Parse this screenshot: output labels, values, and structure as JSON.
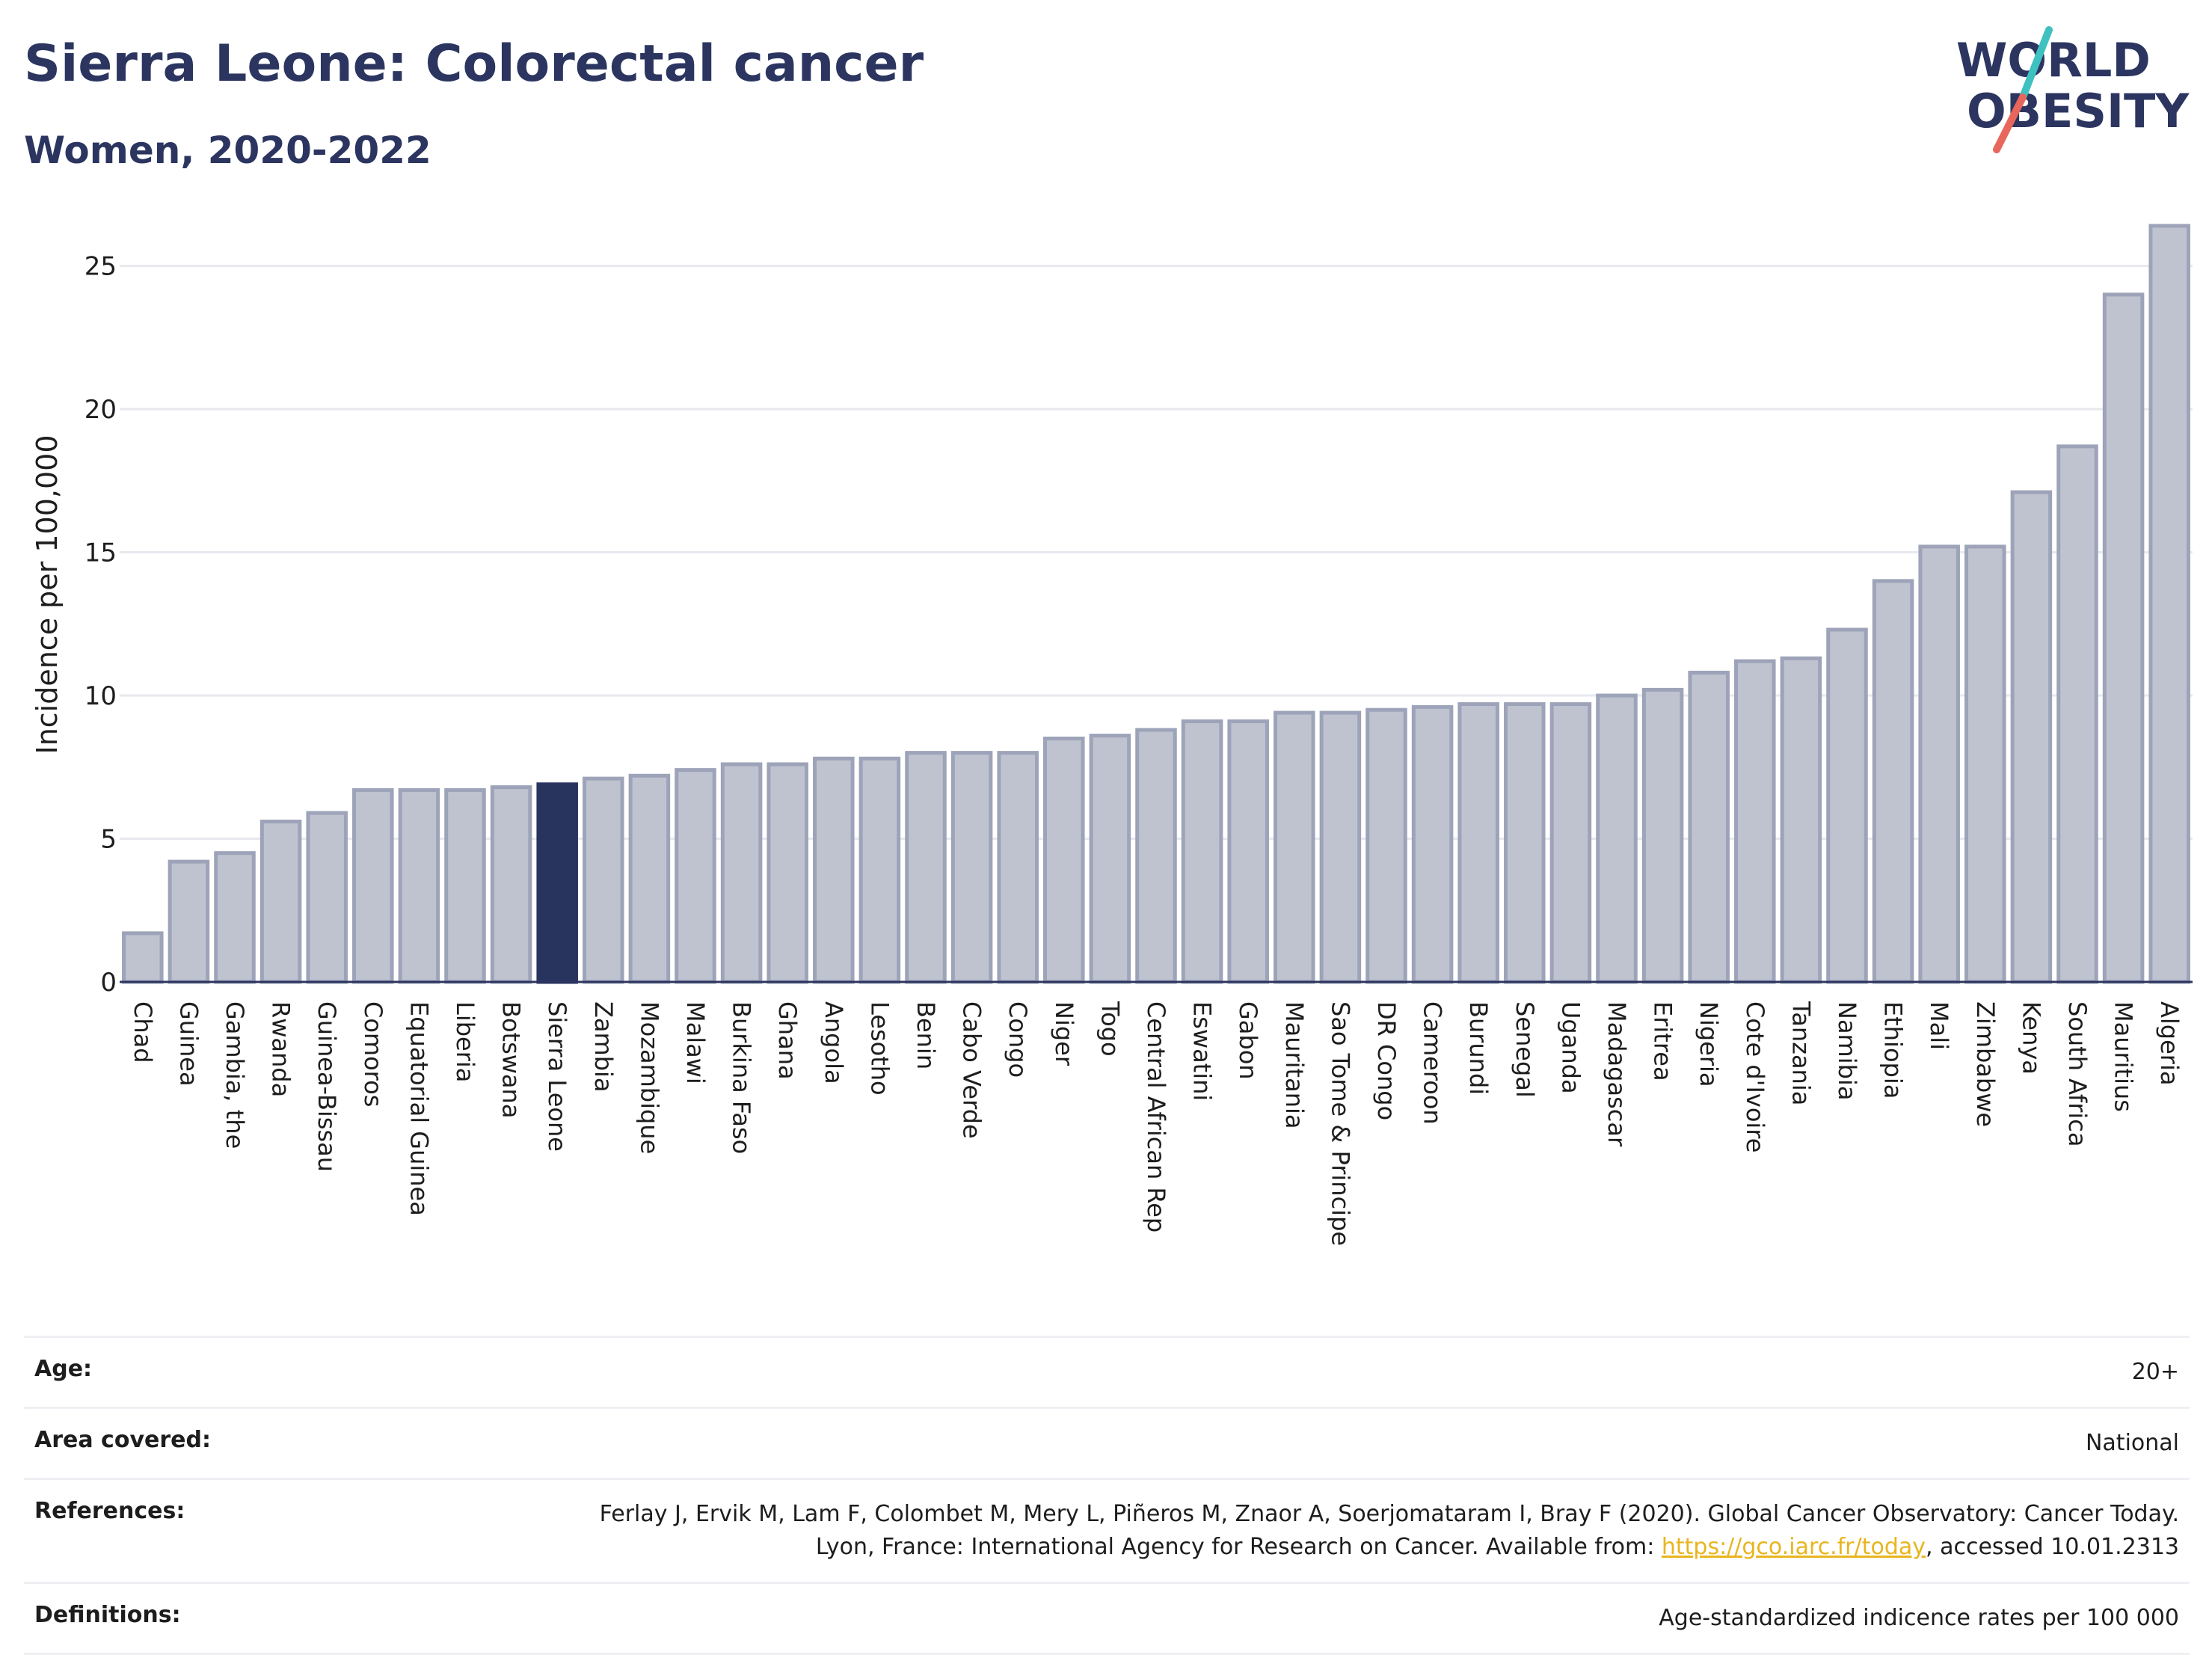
{
  "header": {
    "title": "Sierra Leone: Colorectal cancer",
    "subtitle": "Women, 2020-2022"
  },
  "logo": {
    "line1": "WORLD",
    "line2": "OBESITY",
    "colors": {
      "text": "#2b3560",
      "slash_top": "#3ec1c0",
      "slash_bottom": "#e8675c"
    }
  },
  "colors": {
    "bar_fill": "#bfc3d0",
    "bar_stroke": "#9da3b8",
    "highlight_fill": "#28335e",
    "grid": "#e7e9ef",
    "axis": "#2b3560"
  },
  "chart_data": {
    "type": "bar",
    "ylabel": "Incidence per 100,000",
    "ylim": [
      0,
      27
    ],
    "yticks": [
      0,
      5,
      10,
      15,
      20,
      25
    ],
    "grid": true,
    "highlight": "Sierra Leone",
    "categories": [
      "Chad",
      "Guinea",
      "Gambia, the",
      "Rwanda",
      "Guinea-Bissau",
      "Comoros",
      "Equatorial Guinea",
      "Liberia",
      "Botswana",
      "Sierra Leone",
      "Zambia",
      "Mozambique",
      "Malawi",
      "Burkina Faso",
      "Ghana",
      "Angola",
      "Lesotho",
      "Benin",
      "Cabo Verde",
      "Congo",
      "Niger",
      "Togo",
      "Central African Rep",
      "Eswatini",
      "Gabon",
      "Mauritania",
      "Sao Tome & Principe",
      "DR Congo",
      "Cameroon",
      "Burundi",
      "Senegal",
      "Uganda",
      "Madagascar",
      "Eritrea",
      "Nigeria",
      "Cote d'Ivoire",
      "Tanzania",
      "Namibia",
      "Ethiopia",
      "Mali",
      "Zimbabwe",
      "Kenya",
      "South Africa",
      "Mauritius",
      "Algeria"
    ],
    "values": [
      1.7,
      4.2,
      4.5,
      5.6,
      5.9,
      6.7,
      6.7,
      6.7,
      6.8,
      6.9,
      7.1,
      7.2,
      7.4,
      7.6,
      7.6,
      7.8,
      7.8,
      8.0,
      8.0,
      8.0,
      8.5,
      8.6,
      8.8,
      9.1,
      9.1,
      9.4,
      9.4,
      9.5,
      9.6,
      9.7,
      9.7,
      9.7,
      10.0,
      10.2,
      10.8,
      11.2,
      11.3,
      12.3,
      14.0,
      15.2,
      15.2,
      17.1,
      18.7,
      24.0,
      26.4
    ]
  },
  "info": {
    "age_label": "Age:",
    "age_value": "20+",
    "area_label": "Area covered:",
    "area_value": "National",
    "references_label": "References:",
    "references_text": "Ferlay J, Ervik M, Lam F, Colombet M, Mery L, Piñeros M, Znaor A, Soerjomataram I, Bray F (2020). Global Cancer Observatory: Cancer Today. Lyon, France: International Agency for Research on Cancer. Available from:",
    "references_link": "https://gco.iarc.fr/today",
    "references_suffix": ", accessed 10.01.2313",
    "definitions_label": "Definitions:",
    "definitions_value": "Age-standardized indicence rates per 100 000"
  }
}
